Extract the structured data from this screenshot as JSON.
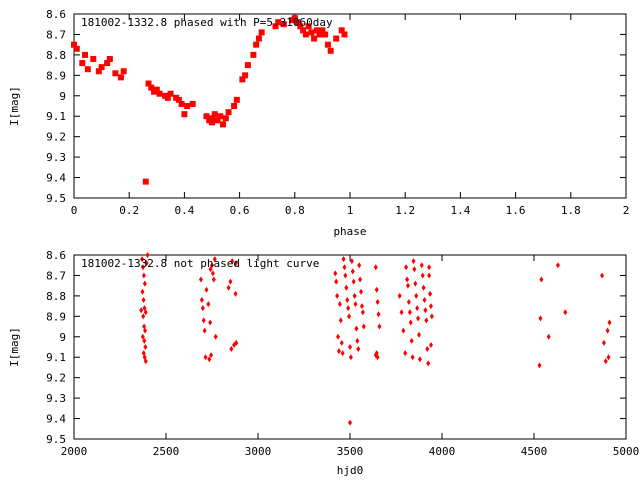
{
  "chart_data": [
    {
      "type": "scatter",
      "title": "181002-1332.8 phased with P=5.31060day",
      "xlabel": "phase",
      "ylabel": "I[mag]",
      "xlim": [
        0,
        2
      ],
      "ylim": [
        8.6,
        9.5
      ],
      "y_inverted": true,
      "grid": false,
      "xticks": [
        0,
        0.2,
        0.4,
        0.6,
        0.8,
        1,
        1.2,
        1.4,
        1.6,
        1.8,
        2
      ],
      "yticks": [
        8.6,
        8.7,
        8.8,
        8.9,
        9,
        9.1,
        9.2,
        9.3,
        9.4,
        9.5
      ],
      "xtick_labels": [
        "0",
        "0.2",
        "0.4",
        "0.6",
        "0.8",
        "1",
        "1.2",
        "1.4",
        "1.6",
        "1.8",
        "2"
      ],
      "ytick_labels": [
        "8.6",
        "8.7",
        "8.8",
        "8.9",
        "9",
        "9.1",
        "9.2",
        "9.3",
        "9.4",
        "9.5"
      ],
      "marker": "cross",
      "color": "#ff0000",
      "series": [
        {
          "points": [
            [
              0.0,
              8.75
            ],
            [
              0.01,
              8.77
            ],
            [
              0.03,
              8.84
            ],
            [
              0.04,
              8.8
            ],
            [
              0.05,
              8.87
            ],
            [
              0.07,
              8.82
            ],
            [
              0.09,
              8.88
            ],
            [
              0.1,
              8.86
            ],
            [
              0.12,
              8.84
            ],
            [
              0.13,
              8.82
            ],
            [
              0.15,
              8.89
            ],
            [
              0.17,
              8.91
            ],
            [
              0.18,
              8.88
            ],
            [
              0.26,
              9.42
            ],
            [
              0.27,
              8.94
            ],
            [
              0.28,
              8.96
            ],
            [
              0.29,
              8.98
            ],
            [
              0.3,
              8.97
            ],
            [
              0.31,
              8.99
            ],
            [
              0.33,
              9.0
            ],
            [
              0.34,
              9.01
            ],
            [
              0.35,
              8.99
            ],
            [
              0.37,
              9.01
            ],
            [
              0.38,
              9.02
            ],
            [
              0.39,
              9.04
            ],
            [
              0.41,
              9.05
            ],
            [
              0.4,
              9.09
            ],
            [
              0.43,
              9.04
            ],
            [
              0.48,
              9.1
            ],
            [
              0.49,
              9.12
            ],
            [
              0.5,
              9.13
            ],
            [
              0.5,
              9.11
            ],
            [
              0.51,
              9.09
            ],
            [
              0.52,
              9.12
            ],
            [
              0.53,
              9.1
            ],
            [
              0.54,
              9.14
            ],
            [
              0.55,
              9.11
            ],
            [
              0.56,
              9.08
            ],
            [
              0.58,
              9.05
            ],
            [
              0.59,
              9.02
            ],
            [
              0.61,
              8.92
            ],
            [
              0.62,
              8.9
            ],
            [
              0.63,
              8.85
            ],
            [
              0.65,
              8.8
            ],
            [
              0.66,
              8.75
            ],
            [
              0.67,
              8.72
            ],
            [
              0.68,
              8.69
            ],
            [
              0.73,
              8.66
            ],
            [
              0.74,
              8.64
            ],
            [
              0.76,
              8.65
            ],
            [
              0.79,
              8.63
            ],
            [
              0.8,
              8.62
            ],
            [
              0.81,
              8.64
            ],
            [
              0.82,
              8.66
            ],
            [
              0.83,
              8.68
            ],
            [
              0.84,
              8.7
            ],
            [
              0.85,
              8.66
            ],
            [
              0.86,
              8.69
            ],
            [
              0.87,
              8.72
            ],
            [
              0.88,
              8.68
            ],
            [
              0.89,
              8.7
            ],
            [
              0.9,
              8.68
            ],
            [
              0.91,
              8.7
            ],
            [
              0.92,
              8.75
            ],
            [
              0.93,
              8.78
            ],
            [
              0.95,
              8.72
            ],
            [
              0.97,
              8.68
            ],
            [
              0.98,
              8.7
            ]
          ]
        }
      ]
    },
    {
      "type": "scatter",
      "title": "181002-1332.8 not phased light curve",
      "xlabel": "hjd0",
      "ylabel": "I[mag]",
      "xlim": [
        2000,
        5000
      ],
      "ylim": [
        8.6,
        9.5
      ],
      "y_inverted": true,
      "grid": false,
      "xticks": [
        2000,
        2500,
        3000,
        3500,
        4000,
        4500,
        5000
      ],
      "yticks": [
        8.6,
        8.7,
        8.8,
        8.9,
        9,
        9.1,
        9.2,
        9.3,
        9.4,
        9.5
      ],
      "xtick_labels": [
        "2000",
        "2500",
        "3000",
        "3500",
        "4000",
        "4500",
        "5000"
      ],
      "ytick_labels": [
        "8.6",
        "8.7",
        "8.8",
        "8.9",
        "9",
        "9.1",
        "9.2",
        "9.3",
        "9.4",
        "9.5"
      ],
      "marker": "diamond",
      "color": "#ff0000",
      "series": [
        {
          "points": [
            [
              2370,
              8.62
            ],
            [
              2375,
              8.66
            ],
            [
              2380,
              8.7
            ],
            [
              2385,
              8.74
            ],
            [
              2372,
              8.78
            ],
            [
              2378,
              8.82
            ],
            [
              2383,
              8.86
            ],
            [
              2390,
              8.88
            ],
            [
              2365,
              8.87
            ],
            [
              2376,
              8.9
            ],
            [
              2381,
              8.95
            ],
            [
              2386,
              8.97
            ],
            [
              2374,
              9.0
            ],
            [
              2382,
              9.02
            ],
            [
              2388,
              9.05
            ],
            [
              2379,
              9.08
            ],
            [
              2384,
              9.1
            ],
            [
              2390,
              9.12
            ],
            [
              2395,
              8.64
            ],
            [
              2400,
              8.6
            ],
            [
              2690,
              8.72
            ],
            [
              2695,
              8.82
            ],
            [
              2700,
              8.86
            ],
            [
              2705,
              8.92
            ],
            [
              2710,
              8.97
            ],
            [
              2715,
              9.1
            ],
            [
              2720,
              8.77
            ],
            [
              2730,
              8.84
            ],
            [
              2740,
              8.93
            ],
            [
              2745,
              9.09
            ],
            [
              2750,
              8.65
            ],
            [
              2755,
              8.69
            ],
            [
              2760,
              8.72
            ],
            [
              2765,
              8.62
            ],
            [
              2770,
              9.0
            ],
            [
              2735,
              9.11
            ],
            [
              2742,
              8.67
            ],
            [
              2840,
              8.76
            ],
            [
              2850,
              8.73
            ],
            [
              2855,
              9.06
            ],
            [
              2860,
              8.63
            ],
            [
              2870,
              9.04
            ],
            [
              2878,
              8.79
            ],
            [
              2882,
              9.03
            ],
            [
              2880,
              8.64
            ],
            [
              3420,
              8.69
            ],
            [
              3425,
              8.73
            ],
            [
              3430,
              8.8
            ],
            [
              3435,
              9.0
            ],
            [
              3440,
              9.07
            ],
            [
              3445,
              8.84
            ],
            [
              3450,
              8.92
            ],
            [
              3455,
              9.03
            ],
            [
              3460,
              9.08
            ],
            [
              3465,
              8.62
            ],
            [
              3470,
              8.66
            ],
            [
              3475,
              8.7
            ],
            [
              3480,
              8.76
            ],
            [
              3485,
              8.82
            ],
            [
              3490,
              8.86
            ],
            [
              3495,
              8.9
            ],
            [
              3500,
              9.05
            ],
            [
              3505,
              9.1
            ],
            [
              3510,
              8.63
            ],
            [
              3515,
              8.68
            ],
            [
              3520,
              8.73
            ],
            [
              3525,
              8.8
            ],
            [
              3530,
              8.84
            ],
            [
              3535,
              8.96
            ],
            [
              3540,
              9.02
            ],
            [
              3545,
              9.06
            ],
            [
              3550,
              8.65
            ],
            [
              3555,
              8.72
            ],
            [
              3560,
              8.78
            ],
            [
              3565,
              8.85
            ],
            [
              3570,
              8.88
            ],
            [
              3575,
              8.95
            ],
            [
              3500,
              9.42
            ],
            [
              3640,
              8.66
            ],
            [
              3645,
              8.77
            ],
            [
              3650,
              8.83
            ],
            [
              3655,
              8.89
            ],
            [
              3660,
              8.95
            ],
            [
              3645,
              9.08
            ],
            [
              3650,
              9.1
            ],
            [
              3640,
              9.09
            ],
            [
              3770,
              8.8
            ],
            [
              3780,
              8.88
            ],
            [
              3790,
              8.97
            ],
            [
              3800,
              9.08
            ],
            [
              3805,
              8.66
            ],
            [
              3810,
              8.72
            ],
            [
              3815,
              8.75
            ],
            [
              3820,
              8.83
            ],
            [
              3825,
              8.88
            ],
            [
              3830,
              8.93
            ],
            [
              3835,
              9.02
            ],
            [
              3840,
              9.1
            ],
            [
              3845,
              8.63
            ],
            [
              3850,
              8.67
            ],
            [
              3855,
              8.74
            ],
            [
              3860,
              8.8
            ],
            [
              3865,
              8.86
            ],
            [
              3870,
              8.91
            ],
            [
              3875,
              8.99
            ],
            [
              3880,
              9.11
            ],
            [
              3890,
              8.65
            ],
            [
              3895,
              8.7
            ],
            [
              3900,
              8.76
            ],
            [
              3905,
              8.82
            ],
            [
              3910,
              8.87
            ],
            [
              3915,
              8.92
            ],
            [
              3920,
              9.06
            ],
            [
              3925,
              9.13
            ],
            [
              3930,
              8.7
            ],
            [
              3935,
              8.79
            ],
            [
              3940,
              8.85
            ],
            [
              3945,
              8.9
            ],
            [
              3940,
              9.04
            ],
            [
              3930,
              8.66
            ],
            [
              4530,
              9.14
            ],
            [
              4535,
              8.91
            ],
            [
              4540,
              8.72
            ],
            [
              4580,
              9.0
            ],
            [
              4630,
              8.65
            ],
            [
              4670,
              8.88
            ],
            [
              4870,
              8.7
            ],
            [
              4880,
              9.03
            ],
            [
              4890,
              9.12
            ],
            [
              4900,
              8.97
            ],
            [
              4905,
              9.1
            ],
            [
              4910,
              8.93
            ]
          ]
        }
      ]
    }
  ]
}
